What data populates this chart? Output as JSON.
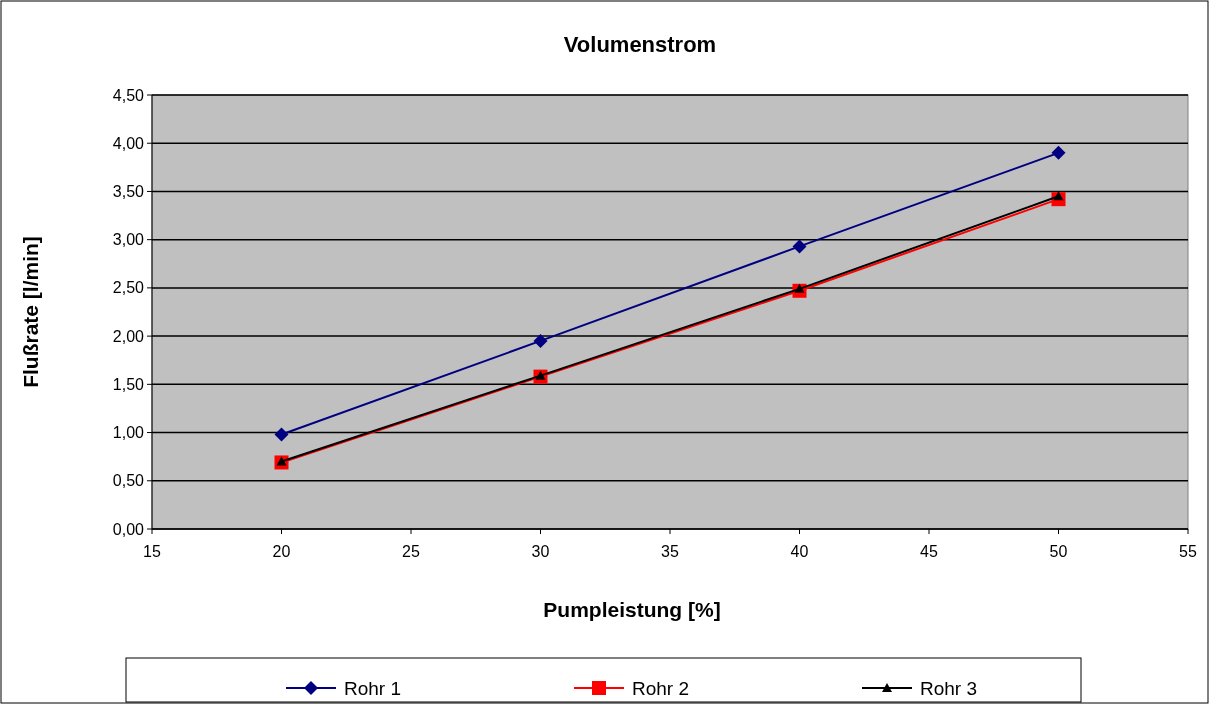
{
  "chart_data": {
    "type": "line",
    "title": "Volumenstrom",
    "xlabel": "Pumpleistung [%]",
    "ylabel": "Flußrate [l/min]",
    "x": [
      20,
      30,
      40,
      50
    ],
    "series": [
      {
        "name": "Rohr 1",
        "color": "#000080",
        "marker": "diamond",
        "values": [
          0.98,
          1.95,
          2.93,
          3.9
        ]
      },
      {
        "name": "Rohr 2",
        "color": "#ff0000",
        "marker": "square",
        "values": [
          0.69,
          1.58,
          2.47,
          3.42
        ]
      },
      {
        "name": "Rohr 3",
        "color": "#000000",
        "marker": "triangle",
        "values": [
          0.7,
          1.59,
          2.49,
          3.45
        ]
      }
    ],
    "xlim": [
      15,
      55
    ],
    "xticks": [
      15,
      20,
      25,
      30,
      35,
      40,
      45,
      50,
      55
    ],
    "ylim": [
      0,
      4.5
    ],
    "yticks": [
      {
        "value": 0,
        "label": "0,00"
      },
      {
        "value": 0.5,
        "label": "0,50"
      },
      {
        "value": 1,
        "label": "1,00"
      },
      {
        "value": 1.5,
        "label": "1,50"
      },
      {
        "value": 2,
        "label": "2,00"
      },
      {
        "value": 2.5,
        "label": "2,50"
      },
      {
        "value": 3,
        "label": "3,00"
      },
      {
        "value": 3.5,
        "label": "3,50"
      },
      {
        "value": 4,
        "label": "4,00"
      },
      {
        "value": 4.5,
        "label": "4,50"
      }
    ],
    "grid": "y",
    "legend": "bottom"
  }
}
